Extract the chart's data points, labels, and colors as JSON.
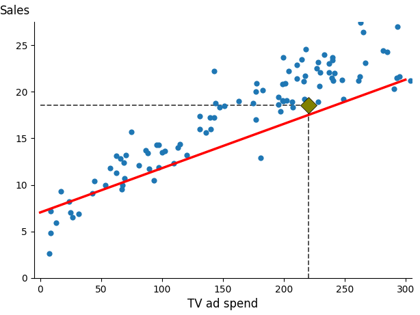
{
  "title": "",
  "xlabel": "TV ad spend",
  "ylabel": "Sales",
  "scatter_color": "#1f77b4",
  "line_color": "red",
  "highlight_color": "#808000",
  "highlight_x": 220.5,
  "highlight_y": 18.53,
  "dashed_color": "#444444",
  "xlim": [
    -5,
    305
  ],
  "ylim": [
    0,
    27.5
  ],
  "yticks": [
    0,
    5,
    10,
    15,
    20,
    25
  ],
  "xticks": [
    0,
    50,
    100,
    150,
    200,
    250,
    300
  ],
  "intercept": 7.0326,
  "slope": 0.04754,
  "scatter_size": 35,
  "highlight_size": 150,
  "line_width": 2.5,
  "tv": [
    230.1,
    44.5,
    17.2,
    151.5,
    180.8,
    8.7,
    57.5,
    120.2,
    8.6,
    199.8,
    66.1,
    214.7,
    23.8,
    97.5,
    204.1,
    195.4,
    67.8,
    281.4,
    69.2,
    147.3,
    218.4,
    237.4,
    13.2,
    228.3,
    62.3,
    262.9,
    142.9,
    240.1,
    248.8,
    70.6,
    292.9,
    112.9,
    97.2,
    265.6,
    95.7,
    290.7,
    266.9,
    74.7,
    43.1,
    228.0,
    202.5,
    177.0,
    293.6,
    206.9,
    25.1,
    175.1,
    89.7,
    239.3,
    227.2,
    66.9,
    199.8,
    100.4,
    216.4,
    182.6,
    262.7,
    198.9,
    7.3,
    136.2,
    210.8,
    210.7,
    53.5,
    261.3,
    239.8,
    102.7,
    131.1,
    69.0,
    31.5,
    139.3,
    237.4,
    216.8,
    199.1,
    109.8,
    26.4,
    143.0,
    144.0,
    242.0,
    248.0,
    131.1,
    177.0,
    218.7,
    197.6,
    140.3,
    295.0,
    88.3,
    115.0,
    81.1,
    163.3,
    207.3,
    284.9,
    229.5,
    240.4,
    177.8,
    233.4,
    201.5,
    93.3,
    86.5,
    217.7,
    304.1,
    195.5,
    62.7
  ],
  "sales": [
    22.1,
    10.4,
    9.3,
    18.5,
    12.9,
    7.2,
    11.8,
    13.2,
    4.8,
    23.7,
    12.8,
    23.5,
    8.2,
    11.9,
    22.2,
    19.4,
    10.0,
    24.4,
    10.7,
    18.3,
    24.6,
    23.0,
    5.9,
    23.2,
    11.3,
    27.4,
    22.2,
    23.7,
    19.2,
    13.2,
    21.5,
    14.0,
    14.3,
    26.4,
    14.3,
    20.3,
    23.1,
    15.7,
    9.1,
    18.9,
    19.1,
    17.0,
    27.0,
    18.9,
    7.0,
    18.8,
    11.7,
    21.5,
    22.5,
    9.5,
    19.0,
    13.5,
    21.1,
    20.2,
    21.6,
    20.8,
    2.6,
    15.6,
    21.4,
    22.9,
    10.0,
    21.2,
    23.4,
    13.6,
    16.0,
    12.4,
    6.9,
    17.2,
    22.1,
    19.2,
    19.1,
    12.3,
    6.5,
    17.2,
    18.8,
    22.0,
    21.3,
    17.4,
    20.0,
    19.1,
    17.9,
    16.0,
    21.6,
    13.4,
    14.4,
    12.1,
    19.0,
    18.3,
    24.3,
    20.6,
    21.2,
    20.9,
    24.0,
    20.9,
    10.5,
    13.7,
    21.7,
    21.2,
    18.6,
    13.1
  ]
}
